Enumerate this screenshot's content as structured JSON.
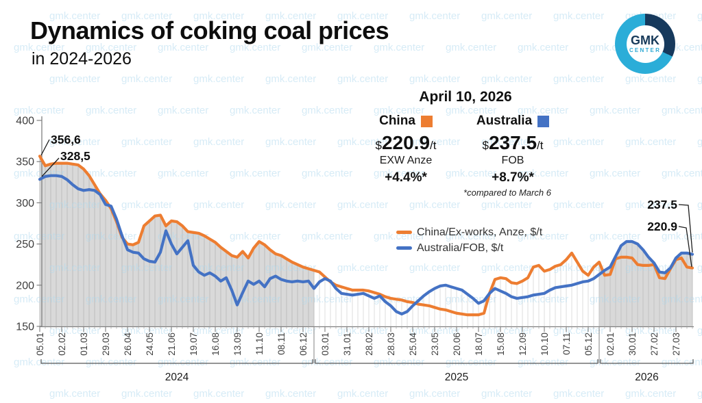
{
  "header": {
    "title": "Dynamics of coking coal prices",
    "subtitle": "in 2024-2026"
  },
  "logo": {
    "line1": "GMK",
    "line2": "CENTER",
    "ring_color": "#2badd8",
    "arc_color": "#16395c"
  },
  "watermark": {
    "text": "gmk.center",
    "color": "#aed9ef"
  },
  "callout": {
    "date": "April 10, 2026",
    "china": {
      "label": "China",
      "currency": "$",
      "value": "220.9",
      "unit": "/t",
      "basis": "EXW Anze",
      "change": "+4.4%*",
      "color": "#ED7D31"
    },
    "australia": {
      "label": "Australia",
      "currency": "$",
      "value": "237.5",
      "unit": "/t",
      "basis": "FOB",
      "change": "+8.7%*",
      "color": "#4472C4"
    },
    "footnote": "*compared to March 6"
  },
  "legend": [
    {
      "label": "China/Ex-works, Anze, $/t",
      "color": "#ED7D31"
    },
    {
      "label": "Australia/FOB, $/t",
      "color": "#4472C4"
    }
  ],
  "chart_data": {
    "type": "line",
    "title": "Dynamics of coking coal prices in 2024-2026",
    "xlabel": "",
    "ylabel": "",
    "ylim": [
      150,
      400
    ],
    "yticks": [
      150,
      200,
      250,
      300,
      350,
      400
    ],
    "grid": "vertical-comb",
    "legend_position": "inside-right",
    "x_tick_labels": [
      "05.01",
      "02.02",
      "01.03",
      "29.03",
      "26.04",
      "24.05",
      "21.06",
      "19.07",
      "16.08",
      "13.09",
      "11.10",
      "08.11",
      "06.12",
      "03.01",
      "31.01",
      "28.02",
      "28.03",
      "25.04",
      "23.05",
      "20.06",
      "18.07",
      "15.08",
      "12.09",
      "10.10",
      "07.11",
      "05.12",
      "02.01",
      "30.01",
      "27.02",
      "27.03"
    ],
    "points_per_tick": 4,
    "years": [
      {
        "label": "2024",
        "from_week": 0,
        "to_week": 50,
        "shaded": true
      },
      {
        "label": "2025",
        "from_week": 50,
        "to_week": 102,
        "shaded": false
      },
      {
        "label": "2026",
        "from_week": 102,
        "to_week": 119,
        "shaded": true
      }
    ],
    "annotations": [
      {
        "text": "356,6",
        "series": "china",
        "position": "start"
      },
      {
        "text": "328,5",
        "series": "australia",
        "position": "start"
      },
      {
        "text": "237.5",
        "series": "australia",
        "position": "end"
      },
      {
        "text": "220.9",
        "series": "china",
        "position": "end"
      }
    ],
    "series": [
      {
        "name": "China/Ex-works, Anze, $/t",
        "color": "#ED7D31",
        "values": [
          356.6,
          345,
          347,
          348,
          348,
          348,
          347,
          346,
          341,
          333,
          322,
          311,
          303,
          293,
          277,
          258,
          250,
          249,
          252,
          272,
          278,
          284,
          285,
          272,
          278,
          277,
          272,
          265,
          264,
          263,
          260,
          256,
          252,
          246,
          241,
          236,
          234,
          241,
          233,
          245,
          253,
          249,
          243,
          238,
          236,
          232,
          228,
          225,
          222,
          220,
          218,
          216,
          210,
          204,
          200,
          198,
          196,
          194,
          194,
          194,
          193,
          191,
          189,
          186,
          184,
          183,
          182,
          180,
          179,
          177,
          176,
          175,
          173,
          171,
          170,
          168,
          166,
          165,
          164,
          164,
          164,
          166,
          190,
          207,
          209,
          208,
          203,
          202,
          205,
          209,
          222,
          224,
          217,
          219,
          223,
          225,
          231,
          239,
          228,
          217,
          212,
          222,
          228,
          212,
          213,
          232,
          234,
          234,
          233,
          225,
          224,
          224,
          225,
          209,
          208,
          220,
          231,
          233,
          222,
          220.9
        ]
      },
      {
        "name": "Australia/FOB, $/t",
        "color": "#4472C4",
        "values": [
          328.5,
          332,
          333,
          333,
          332,
          328,
          322,
          317,
          315,
          316,
          315,
          310,
          298,
          296,
          280,
          260,
          243,
          240,
          239,
          232,
          229,
          228,
          240,
          266,
          250,
          238,
          246,
          254,
          224,
          216,
          212,
          215,
          211,
          205,
          209,
          194,
          176,
          191,
          205,
          201,
          205,
          198,
          208,
          211,
          207,
          205,
          204,
          205,
          204,
          205,
          196,
          204,
          208,
          205,
          196,
          190,
          189,
          188,
          189,
          190,
          187,
          184,
          187,
          180,
          175,
          168,
          165,
          168,
          175,
          181,
          187,
          192,
          196,
          199,
          200,
          198,
          196,
          194,
          189,
          184,
          178,
          181,
          190,
          196,
          193,
          190,
          186,
          184,
          185,
          186,
          188,
          189,
          190,
          194,
          197,
          198,
          199,
          200,
          202,
          204,
          205,
          208,
          213,
          218,
          222,
          235,
          248,
          253,
          253,
          250,
          243,
          234,
          227,
          216,
          215,
          221,
          233,
          239,
          239,
          237.5
        ]
      }
    ]
  }
}
